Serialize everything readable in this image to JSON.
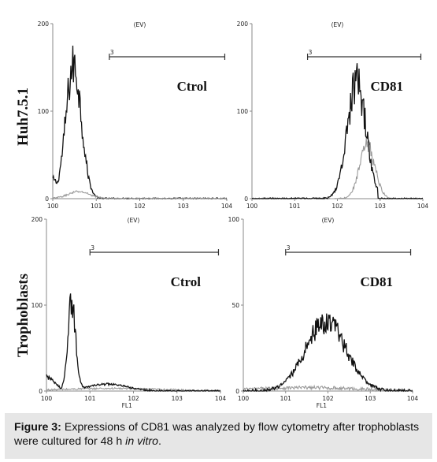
{
  "rows": [
    {
      "label": "Huh7.5.1"
    },
    {
      "label": "Trophoblasts"
    }
  ],
  "chart_data": [
    {
      "type": "area",
      "panel_label": "Ctrol",
      "top_label": "(EV)",
      "gate_label": "3",
      "xlabel": "",
      "ylim": [
        0,
        200
      ],
      "y_ticks": [
        "0",
        "100",
        "200"
      ],
      "xscale": "log",
      "xlim": [
        1,
        10000
      ],
      "x_ticks": [
        "100",
        "101",
        "102",
        "103",
        "104"
      ],
      "gate_range": [
        20,
        9000
      ],
      "series": [
        {
          "color": "#111111",
          "type": "unimodal",
          "log_peak": 0.48,
          "sigma": 0.18,
          "peak_count": 152,
          "baseline": 22,
          "baseline_log_end": 0.3,
          "log_end": 1.25
        },
        {
          "color": "#9a9a9a",
          "type": "unimodal",
          "log_peak": 0.6,
          "sigma": 0.25,
          "peak_count": 8,
          "baseline": 0,
          "baseline_log_end": 0,
          "log_end": 1.2
        }
      ]
    },
    {
      "type": "area",
      "panel_label": "CD81",
      "top_label": "(EV)",
      "gate_label": "3",
      "xlabel": "",
      "ylim": [
        0,
        200
      ],
      "y_ticks": [
        "0",
        "100",
        "200"
      ],
      "xscale": "log",
      "xlim": [
        1,
        10000
      ],
      "x_ticks": [
        "100",
        "101",
        "102",
        "103",
        "104"
      ],
      "gate_range": [
        20,
        9000
      ],
      "series": [
        {
          "color": "#9a9a9a",
          "type": "unimodal",
          "log_peak": 2.7,
          "sigma": 0.18,
          "peak_count": 60,
          "baseline": 0,
          "baseline_log_end": 0,
          "log_end": 3.9
        },
        {
          "color": "#111111",
          "type": "unimodal",
          "log_peak": 2.45,
          "sigma": 0.22,
          "peak_count": 132,
          "baseline": 0,
          "baseline_log_end": 0,
          "log_end": 2.95
        }
      ]
    },
    {
      "type": "area",
      "panel_label": "Ctrol",
      "top_label": "(EV)",
      "gate_label": "3",
      "xlabel": "FL1",
      "ylim": [
        0,
        200
      ],
      "y_ticks": [
        "0",
        "100",
        "200"
      ],
      "xscale": "log",
      "xlim": [
        1,
        10000
      ],
      "x_ticks": [
        "100",
        "101",
        "102",
        "103",
        "104"
      ],
      "gate_range": [
        10,
        9000
      ],
      "series": [
        {
          "color": "#9a9a9a",
          "type": "unimodal",
          "log_peak": 1.5,
          "sigma": 1.2,
          "peak_count": 3,
          "baseline": 0,
          "baseline_log_end": 0,
          "log_end": 4.0
        },
        {
          "color": "#111111",
          "type": "bimodal",
          "log_peak": 0.58,
          "sigma": 0.09,
          "peak_count": 102,
          "baseline": 18,
          "baseline_log_end": 0.4,
          "log_end": 3.0,
          "shoulder_log": 1.4,
          "shoulder_sigma": 0.45,
          "shoulder_count": 8
        }
      ]
    },
    {
      "type": "area",
      "panel_label": "CD81",
      "top_label": "(EV)",
      "gate_label": "3",
      "xlabel": "FL1",
      "ylim": [
        0,
        100
      ],
      "y_ticks": [
        "0",
        "50",
        "100"
      ],
      "xscale": "log",
      "xlim": [
        1,
        10000
      ],
      "x_ticks": [
        "100",
        "101",
        "102",
        "103",
        "104"
      ],
      "gate_range": [
        10,
        9000
      ],
      "series": [
        {
          "color": "#9a9a9a",
          "type": "unimodal",
          "log_peak": 1.5,
          "sigma": 1.2,
          "peak_count": 2,
          "baseline": 0,
          "baseline_log_end": 0,
          "log_end": 4.0
        },
        {
          "color": "#111111",
          "type": "unimodal",
          "log_peak": 1.95,
          "sigma": 0.48,
          "peak_count": 40,
          "baseline": 0,
          "baseline_log_end": 0,
          "log_end": 3.45
        }
      ]
    }
  ],
  "caption": {
    "label": "Figure 3:",
    "text": " Expressions of CD81 was analyzed by flow cytometry after trophoblasts were cultured for 48 h ",
    "italic": "in vitro",
    "end": "."
  }
}
